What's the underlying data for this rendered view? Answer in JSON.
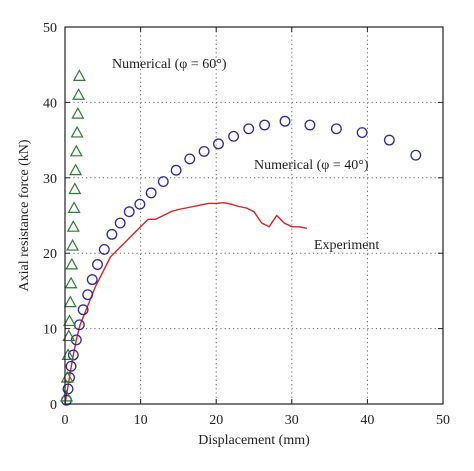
{
  "colors": {
    "numerical_60": "#2e7d32",
    "numerical_40": "#2a2aa8",
    "experiment": "#dd2222"
  },
  "chart_data": {
    "type": "scatter",
    "xlabel": "Displacement (mm)",
    "ylabel": "Axial resistance force (kN)",
    "xlim": [
      0,
      50
    ],
    "ylim": [
      0,
      50
    ],
    "xticks": [
      0,
      10,
      20,
      30,
      40,
      50
    ],
    "yticks": [
      0,
      10,
      20,
      30,
      40,
      50
    ],
    "grid": true,
    "series": [
      {
        "name": "Numerical (φ = 60°)",
        "marker": "triangle",
        "x": [
          0.2,
          0.3,
          0.4,
          0.5,
          0.6,
          0.7,
          0.8,
          0.9,
          1.0,
          1.1,
          1.2,
          1.3,
          1.4,
          1.5,
          1.6,
          1.7,
          1.8,
          1.9
        ],
        "y": [
          1,
          3.5,
          6.5,
          9,
          11,
          13.5,
          16,
          18.5,
          21,
          23.5,
          26,
          28.5,
          31,
          33.5,
          36,
          38.5,
          41,
          43.5
        ]
      },
      {
        "name": "Numerical (φ = 40°)",
        "marker": "circle",
        "x": [
          0.2,
          0.4,
          0.6,
          0.8,
          1.1,
          1.5,
          1.9,
          2.4,
          3.0,
          3.6,
          4.3,
          5.2,
          6.2,
          7.3,
          8.5,
          9.9,
          11.4,
          13.0,
          14.7,
          16.5,
          18.4,
          20.3,
          22.3,
          24.3,
          26.4,
          29.1,
          32.4,
          35.9,
          39.3,
          42.9,
          46.4
        ],
        "y": [
          0.5,
          2,
          3.5,
          5,
          6.5,
          8.5,
          10.5,
          12.5,
          14.5,
          16.5,
          18.5,
          20.5,
          22.5,
          24,
          25.5,
          26.5,
          28,
          29.5,
          31,
          32.5,
          33.5,
          34.5,
          35.5,
          36.5,
          37,
          37.5,
          37,
          36.5,
          36,
          35,
          33
        ]
      },
      {
        "name": "Experiment",
        "marker": "line",
        "x": [
          0,
          0.5,
          1,
          1.5,
          2,
          3,
          4,
          5,
          6,
          7,
          8,
          9,
          10,
          11,
          12,
          13,
          14,
          15,
          16,
          17,
          18,
          19,
          20,
          21,
          22,
          23,
          24,
          25,
          26,
          27,
          28,
          29,
          30,
          31,
          32
        ],
        "y": [
          0,
          3,
          6,
          8.5,
          10.5,
          13,
          15.5,
          17.5,
          19.5,
          20.5,
          21.5,
          22.5,
          23.5,
          24.5,
          24.5,
          25,
          25.5,
          25.8,
          26,
          26.2,
          26.4,
          26.6,
          26.6,
          26.7,
          26.5,
          26.2,
          26,
          25.5,
          24,
          23.5,
          25,
          24,
          23.5,
          23.5,
          23.3
        ]
      }
    ],
    "annotations": [
      {
        "text": "Numerical (φ = 60°)"
      },
      {
        "text": "Numerical (φ = 40°)"
      },
      {
        "text": "Experiment"
      }
    ]
  }
}
